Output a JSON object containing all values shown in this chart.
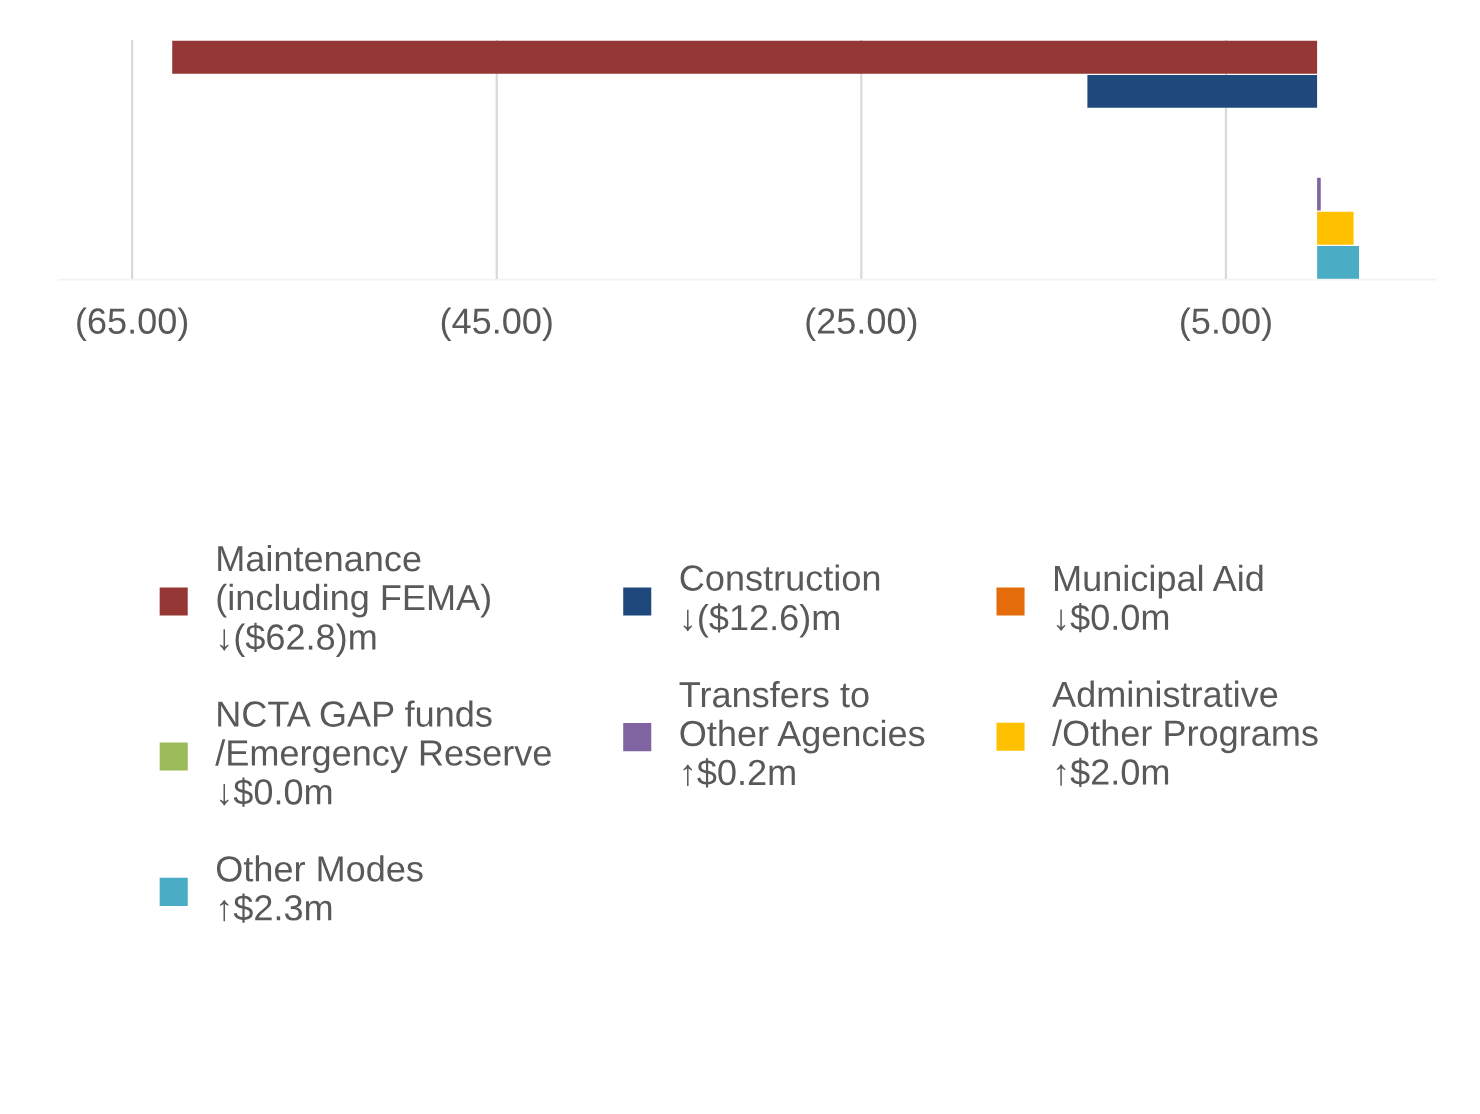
{
  "chart_data": {
    "type": "bar",
    "orientation": "horizontal",
    "categories": [
      null,
      null,
      null,
      null,
      null,
      null,
      null
    ],
    "series": [
      {
        "name": "Maintenance\n(including FEMA)\n↓($62.8)m",
        "color": "#953735",
        "values": [
          -62.8,
          null,
          null,
          null,
          null,
          null,
          null
        ]
      },
      {
        "name": "Construction\n↓($12.6)m",
        "color": "#1f497d",
        "values": [
          null,
          -12.6,
          null,
          null,
          null,
          null,
          null
        ]
      },
      {
        "name": "Municipal Aid\n↓$0.0m",
        "color": "#e46c0a",
        "values": [
          null,
          null,
          0.0,
          null,
          null,
          null,
          null
        ]
      },
      {
        "name": "NCTA GAP funds\n/Emergency Reserve\n↓$0.0m",
        "color": "#9bbb59",
        "values": [
          null,
          null,
          null,
          0.0,
          null,
          null,
          null
        ]
      },
      {
        "name": "Transfers to\nOther Agencies\n↑$0.2m",
        "color": "#8064a2",
        "values": [
          null,
          null,
          null,
          null,
          0.2,
          null,
          null
        ]
      },
      {
        "name": "Administrative\n/Other Programs\n↑$2.0m",
        "color": "#ffc000",
        "values": [
          null,
          null,
          null,
          null,
          null,
          2.0,
          null
        ]
      },
      {
        "name": "Other Modes\n↑$2.3m",
        "color": "#4bacc6",
        "values": [
          null,
          null,
          null,
          null,
          null,
          null,
          2.3
        ]
      }
    ],
    "xlim": [
      -69,
      6.5
    ],
    "xticks": [
      {
        "value": -65,
        "label": "(65.00)"
      },
      {
        "value": -45,
        "label": "(45.00)"
      },
      {
        "value": -25,
        "label": "(25.00)"
      },
      {
        "value": -5,
        "label": "(5.00)"
      }
    ],
    "grid": "x",
    "legend": "bottom"
  }
}
